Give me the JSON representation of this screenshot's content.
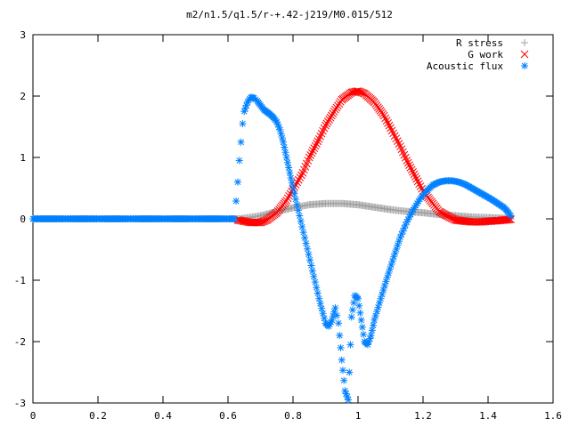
{
  "chart_data": {
    "type": "scatter",
    "title": "m2/n1.5/q1.5/r-+.42-j219/M0.015/512",
    "xlabel": "",
    "ylabel": "",
    "xlim": [
      0,
      1.6
    ],
    "ylim": [
      -3,
      3
    ],
    "x_ticks": [
      "0",
      "0.2",
      "0.4",
      "0.6",
      "0.8",
      "1",
      "1.2",
      "1.4",
      "1.6"
    ],
    "y_ticks": [
      "-3",
      "-2",
      "-1",
      "0",
      "1",
      "2",
      "3"
    ],
    "x_tick_values": [
      0,
      0.2,
      0.4,
      0.6,
      0.8,
      1.0,
      1.2,
      1.4,
      1.6
    ],
    "y_tick_values": [
      -3,
      -2,
      -1,
      0,
      1,
      2,
      3
    ],
    "grid": false,
    "legend_position": "top-right",
    "series": [
      {
        "name": "R stress",
        "marker": "plus",
        "color": "#a0a0a0",
        "x": [
          0.0,
          0.1,
          0.2,
          0.3,
          0.4,
          0.5,
          0.6,
          0.63,
          0.65,
          0.7,
          0.75,
          0.8,
          0.85,
          0.9,
          0.95,
          1.0,
          1.05,
          1.1,
          1.15,
          1.2,
          1.25,
          1.3,
          1.35,
          1.4,
          1.45,
          1.47
        ],
        "y": [
          0,
          0,
          0,
          0,
          0,
          0,
          0,
          0.0,
          0.01,
          0.05,
          0.12,
          0.18,
          0.23,
          0.25,
          0.25,
          0.23,
          0.19,
          0.15,
          0.12,
          0.1,
          0.07,
          0.05,
          0.03,
          0.02,
          0.01,
          0.0
        ]
      },
      {
        "name": "G work",
        "marker": "cross",
        "color": "#ff0000",
        "x": [
          0.63,
          0.65,
          0.67,
          0.7,
          0.72,
          0.75,
          0.78,
          0.8,
          0.83,
          0.85,
          0.88,
          0.9,
          0.93,
          0.95,
          0.98,
          1.0,
          1.02,
          1.05,
          1.08,
          1.1,
          1.13,
          1.15,
          1.18,
          1.2,
          1.23,
          1.25,
          1.28,
          1.3,
          1.33,
          1.35,
          1.38,
          1.4,
          1.43,
          1.45,
          1.47
        ],
        "y": [
          -0.02,
          -0.04,
          -0.06,
          -0.06,
          -0.02,
          0.1,
          0.3,
          0.48,
          0.75,
          1.0,
          1.3,
          1.52,
          1.78,
          1.94,
          2.06,
          2.08,
          2.04,
          1.9,
          1.68,
          1.48,
          1.18,
          0.95,
          0.65,
          0.45,
          0.25,
          0.12,
          0.03,
          -0.02,
          -0.04,
          -0.05,
          -0.05,
          -0.04,
          -0.03,
          -0.02,
          -0.01
        ]
      },
      {
        "name": "Acoustic flux",
        "marker": "star",
        "color": "#0080ff",
        "x": [
          0.0,
          0.05,
          0.1,
          0.15,
          0.2,
          0.25,
          0.3,
          0.35,
          0.4,
          0.45,
          0.5,
          0.55,
          0.6,
          0.62,
          0.625,
          0.63,
          0.635,
          0.64,
          0.645,
          0.65,
          0.66,
          0.67,
          0.68,
          0.69,
          0.7,
          0.71,
          0.72,
          0.73,
          0.74,
          0.75,
          0.76,
          0.77,
          0.78,
          0.79,
          0.8,
          0.82,
          0.84,
          0.86,
          0.88,
          0.9,
          0.91,
          0.92,
          0.93,
          0.94,
          0.95,
          0.96,
          0.97,
          0.98,
          0.99,
          1.0,
          1.01,
          1.02,
          1.03,
          1.04,
          1.05,
          1.07,
          1.09,
          1.11,
          1.13,
          1.15,
          1.17,
          1.19,
          1.21,
          1.23,
          1.25,
          1.27,
          1.29,
          1.31,
          1.33,
          1.35,
          1.37,
          1.39,
          1.41,
          1.43,
          1.45,
          1.46,
          1.47
        ],
        "y": [
          0,
          0,
          0,
          0,
          0,
          0,
          0,
          0,
          0,
          0,
          0,
          0,
          0,
          0,
          0.29,
          0.6,
          0.95,
          1.25,
          1.55,
          1.75,
          1.9,
          1.98,
          1.97,
          1.92,
          1.85,
          1.78,
          1.74,
          1.7,
          1.65,
          1.58,
          1.45,
          1.25,
          1.0,
          0.75,
          0.5,
          0.05,
          -0.4,
          -0.85,
          -1.3,
          -1.7,
          -1.75,
          -1.65,
          -1.45,
          -1.7,
          -2.3,
          -2.8,
          -2.95,
          -1.6,
          -1.25,
          -1.3,
          -1.65,
          -2.0,
          -2.05,
          -1.9,
          -1.65,
          -1.3,
          -0.95,
          -0.62,
          -0.3,
          -0.05,
          0.15,
          0.32,
          0.45,
          0.55,
          0.6,
          0.62,
          0.62,
          0.6,
          0.56,
          0.5,
          0.44,
          0.38,
          0.32,
          0.25,
          0.18,
          0.12,
          0.05
        ]
      }
    ]
  }
}
